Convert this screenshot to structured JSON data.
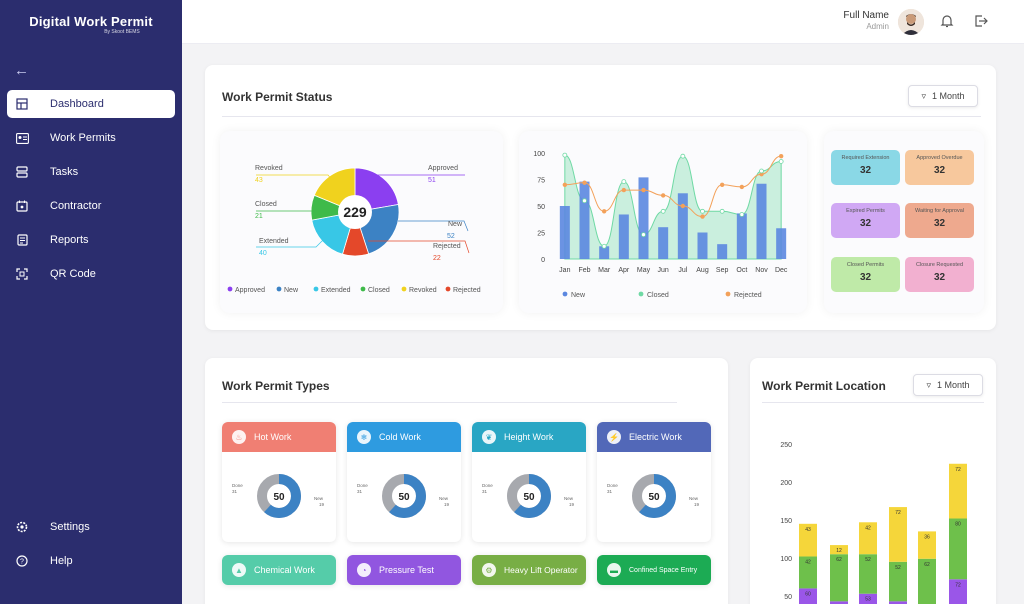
{
  "brand": {
    "title": "Digital Work Permit",
    "subtitle": "By Skoot BEMS"
  },
  "nav": [
    {
      "label": "Dashboard"
    },
    {
      "label": "Work Permits"
    },
    {
      "label": "Tasks"
    },
    {
      "label": "Contractor"
    },
    {
      "label": "Reports"
    },
    {
      "label": "QR Code"
    }
  ],
  "bottom_nav": [
    {
      "label": "Settings"
    },
    {
      "label": "Help"
    }
  ],
  "header": {
    "name": "Full Name",
    "role": "Admin"
  },
  "status_card": {
    "title": "Work Permit Status",
    "filter": "1 Month"
  },
  "donut": {
    "total": "229",
    "labels": [
      {
        "name": "Revoked",
        "value": "43"
      },
      {
        "name": "Closed",
        "value": "21"
      },
      {
        "name": "Extended",
        "value": "40"
      },
      {
        "name": "Approved",
        "value": "51"
      },
      {
        "name": "New",
        "value": "52"
      },
      {
        "name": "Rejected",
        "value": "22"
      }
    ],
    "legend": [
      "Approved",
      "New",
      "Extended",
      "Closed",
      "Revoked",
      "Rejected"
    ],
    "colors": [
      "#8b3ff0",
      "#3c82c4",
      "#38c7e6",
      "#3fba4a",
      "#f0d21e",
      "#e4482a"
    ]
  },
  "chart_data": {
    "type": "bar",
    "categories": [
      "Jan",
      "Feb",
      "Mar",
      "Apr",
      "May",
      "Jun",
      "Jul",
      "Aug",
      "Sep",
      "Oct",
      "Nov",
      "Dec"
    ],
    "ylim": [
      0,
      100
    ],
    "yticks": [
      "100",
      "75",
      "50",
      "25",
      "0"
    ],
    "series": [
      {
        "name": "New",
        "type": "bar",
        "values": [
          50,
          73,
          12,
          42,
          77,
          30,
          62,
          25,
          14,
          43,
          71,
          29
        ]
      },
      {
        "name": "Closed",
        "type": "area",
        "values": [
          98,
          55,
          12,
          73,
          23,
          45,
          97,
          45,
          45,
          42,
          83,
          92
        ]
      },
      {
        "name": "Rejected",
        "type": "line",
        "values": [
          70,
          72,
          45,
          65,
          65,
          60,
          50,
          40,
          70,
          68,
          80,
          97
        ]
      }
    ]
  },
  "stats": [
    {
      "label": "Required Extension",
      "value": "32",
      "color": "#8ad8e6"
    },
    {
      "label": "Approved Overdue",
      "value": "32",
      "color": "#f7c89d"
    },
    {
      "label": "Expired Permits",
      "value": "32",
      "color": "#d0a8f4"
    },
    {
      "label": "Waiting for Approval",
      "value": "32",
      "color": "#eea98e"
    },
    {
      "label": "Closed Permits",
      "value": "32",
      "color": "#bfeaa8"
    },
    {
      "label": "Closure Requested",
      "value": "32",
      "color": "#f2b0d0"
    }
  ],
  "types_card": {
    "title": "Work Permit Types"
  },
  "types": [
    {
      "label": "Hot Work",
      "color": "#f07f73",
      "icon": "flame-icon",
      "total": "50",
      "done": "Done",
      "done_val": "31",
      "new": "New",
      "new_val": "19"
    },
    {
      "label": "Cold Work",
      "color": "#2e9be0",
      "icon": "snowflake-icon",
      "total": "50",
      "done": "Done",
      "done_val": "31",
      "new": "New",
      "new_val": "19"
    },
    {
      "label": "Height Work",
      "color": "#29a6c4",
      "icon": "feather-icon",
      "total": "50",
      "done": "Done",
      "done_val": "31",
      "new": "New",
      "new_val": "19"
    },
    {
      "label": "Electric Work",
      "color": "#5268b8",
      "icon": "electric-icon",
      "total": "50",
      "done": "Done",
      "done_val": "31",
      "new": "New",
      "new_val": "19"
    },
    {
      "label": "Chemical Work",
      "color": "#55cca9",
      "icon": "flask-icon"
    },
    {
      "label": "Pressure Test",
      "color": "#9156e0",
      "icon": "gauge-icon"
    },
    {
      "label": "Heavy Lift Operator",
      "color": "#78ae45",
      "icon": "crane-icon"
    },
    {
      "label": "Confined Space Entry",
      "color": "#1cab54",
      "icon": "manhole-icon"
    }
  ],
  "location_card": {
    "title": "Work Permit Location",
    "filter": "1 Month",
    "yticks": [
      "250",
      "200",
      "150",
      "100",
      "50"
    ],
    "stacks": [
      {
        "purple": 60,
        "green": 42,
        "yellow": 43
      },
      {
        "purple": 43,
        "green": 62,
        "yellow": 12
      },
      {
        "purple": 53,
        "green": 52,
        "yellow": 42
      },
      {
        "purple": 43,
        "green": 52,
        "yellow": 72
      },
      {
        "purple": 37,
        "green": 62,
        "yellow": 36
      },
      {
        "purple": 72,
        "green": 80,
        "yellow": 72
      }
    ]
  }
}
